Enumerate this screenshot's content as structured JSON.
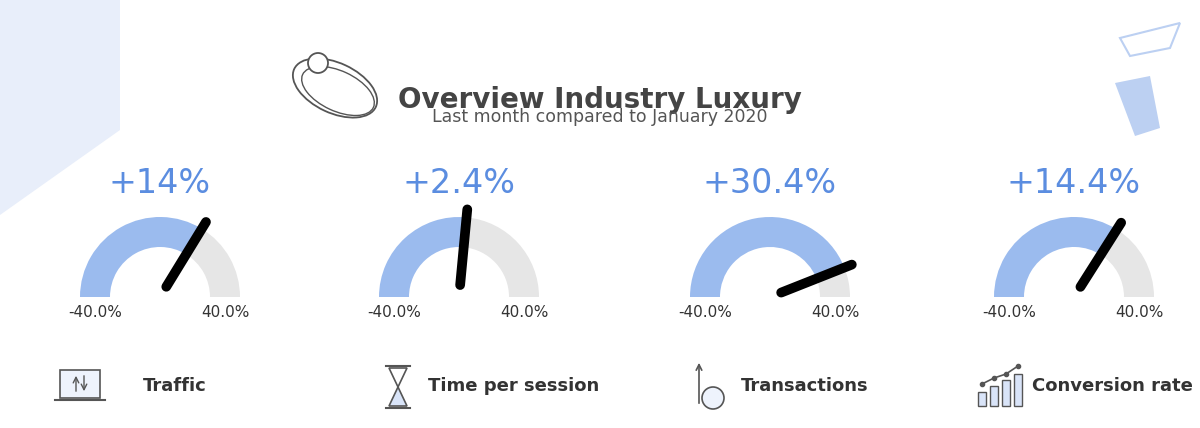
{
  "header": {
    "title": "Overview Industry Luxury",
    "subtitle": "Last month compared to January 2020"
  },
  "chart_data": [
    {
      "type": "gauge",
      "title": "Traffic",
      "values": [
        14
      ],
      "value_labels": [
        "+14%"
      ],
      "xlim": [
        -40,
        40
      ],
      "xticks": [
        {
          "value": -40,
          "label": "-40.0%"
        },
        {
          "value": 40,
          "label": "40.0%"
        }
      ],
      "color": "#9bbbee"
    },
    {
      "type": "gauge",
      "title": "Time per session",
      "values": [
        2.4
      ],
      "value_labels": [
        "+2.4%"
      ],
      "xlim": [
        -40,
        40
      ],
      "xticks": [
        {
          "value": -40,
          "label": "-40.0%"
        },
        {
          "value": 40,
          "label": "40.0%"
        }
      ],
      "color": "#9bbbee"
    },
    {
      "type": "gauge",
      "title": "Transactions",
      "values": [
        30.4
      ],
      "value_labels": [
        "+30.4%"
      ],
      "xlim": [
        -40,
        40
      ],
      "xticks": [
        {
          "value": -40,
          "label": "-40.0%"
        },
        {
          "value": 40,
          "label": "40.0%"
        }
      ],
      "color": "#9bbbee"
    },
    {
      "type": "gauge",
      "title": "Conversion rate",
      "values": [
        14.4
      ],
      "value_labels": [
        "+14.4%"
      ],
      "xlim": [
        -40,
        40
      ],
      "xticks": [
        {
          "value": -40,
          "label": "-40.0%"
        },
        {
          "value": 40,
          "label": "40.0%"
        }
      ],
      "color": "#9bbbee"
    }
  ]
}
